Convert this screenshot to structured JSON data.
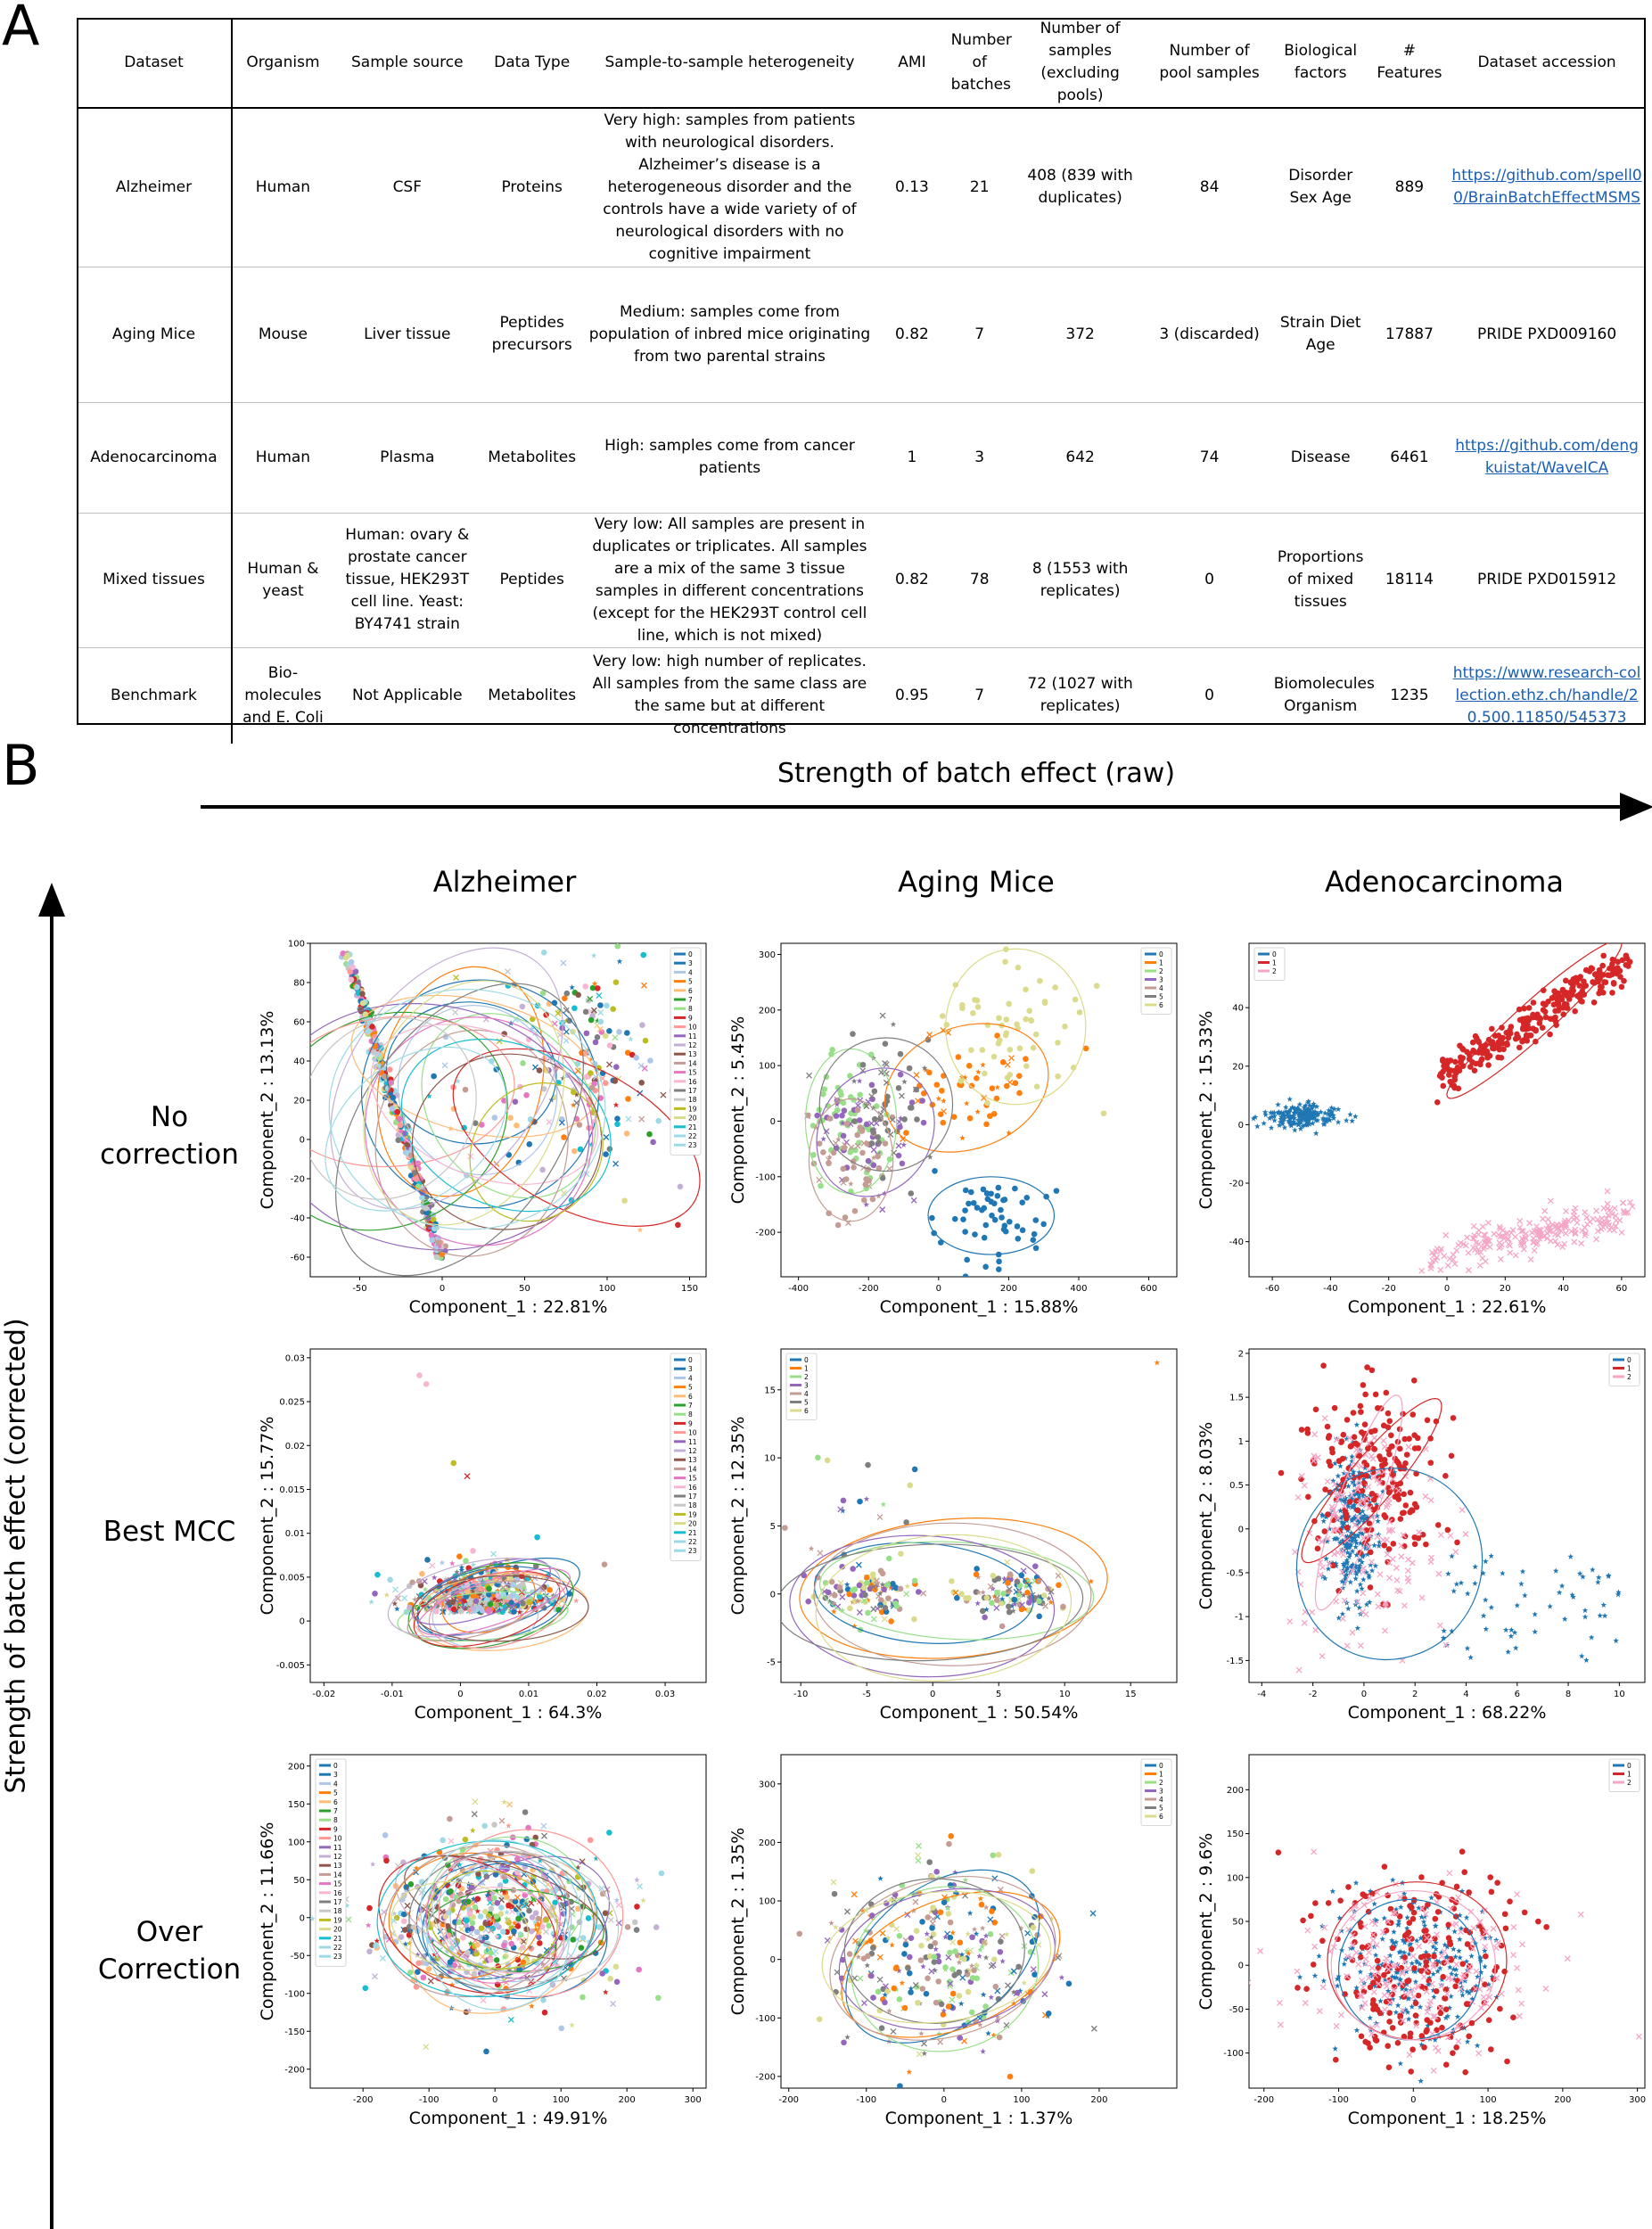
{
  "panel_a": {
    "letter": "A",
    "headers": [
      "Dataset",
      "Organism",
      "Sample source",
      "Data Type",
      "Sample-to-sample heterogeneity",
      "AMI",
      "Number of batches",
      "Number of samples (excluding pools)",
      "Number of pool samples",
      "Biological factors",
      "# Features",
      "Dataset accession"
    ],
    "rows": [
      {
        "dataset": "Alzheimer",
        "organism": "Human",
        "source": "CSF",
        "dtype": "Proteins",
        "heterogeneity": "Very high: samples from patients with neurological disorders. Alzheimer’s disease is a heterogeneous disorder and the controls have a wide variety of of neurological disorders with no cognitive impairment",
        "ami": "0.13",
        "batches": "21",
        "samples": "408 (839 with duplicates)",
        "pools": "84",
        "factors": "Disorder Sex Age",
        "features": "889",
        "accession": "https://github.com/spell00/BrainBatchEffectMSMS",
        "accession_is_link": true
      },
      {
        "dataset": "Aging Mice",
        "organism": "Mouse",
        "source": "Liver tissue",
        "dtype": "Peptides precursors",
        "heterogeneity": "Medium: samples come from population of inbred mice originating from two parental strains",
        "ami": "0.82",
        "batches": "7",
        "samples": "372",
        "pools": "3  (discarded)",
        "factors": "Strain Diet Age",
        "features": "17887",
        "accession": "PRIDE PXD009160",
        "accession_is_link": false
      },
      {
        "dataset": "Adenocarcinoma",
        "organism": "Human",
        "source": "Plasma",
        "dtype": "Metabolites",
        "heterogeneity": "High: samples come from cancer patients",
        "ami": "1",
        "batches": "3",
        "samples": "642",
        "pools": "74",
        "factors": "Disease",
        "features": "6461",
        "accession": "https://github.com/dengkuistat/WaveICA",
        "accession_is_link": true
      },
      {
        "dataset": "Mixed tissues",
        "organism": "Human & yeast",
        "source": "Human: ovary & prostate cancer tissue, HEK293T cell line. Yeast: BY4741 strain",
        "dtype": "Peptides",
        "heterogeneity": "Very low: All samples are present in duplicates or triplicates. All samples are a mix of the same 3 tissue samples in different concentrations (except for the HEK293T control cell line, which is not mixed)",
        "ami": "0.82",
        "batches": "78",
        "samples": "8 (1553 with replicates)",
        "pools": "0",
        "factors": "Proportions of mixed tissues",
        "features": "18114",
        "accession": "PRIDE PXD015912",
        "accession_is_link": false
      },
      {
        "dataset": "Benchmark",
        "organism": "Bio-molecules and E. Coli",
        "source": "Not Applicable",
        "dtype": "Metabolites",
        "heterogeneity": "Very low: high number of replicates. All samples from the same class are the same but at different concentrations",
        "ami": "0.95",
        "batches": "7",
        "samples": "72 (1027 with replicates)",
        "pools": "0",
        "factors": "Biomolecules Organism",
        "features": "1235",
        "accession": "https://www.research-collection.ethz.ch/handle/20.500.11850/545373",
        "accession_is_link": true
      }
    ]
  },
  "panel_b": {
    "letter": "B",
    "x_arrow_label": "Strength of batch effect (raw)",
    "y_arrow_label": "Strength of batch effect (corrected)",
    "columns": [
      "Alzheimer",
      "Aging Mice",
      "Adenocarcinoma"
    ],
    "rows": [
      "No correction",
      "Best MCC",
      "Over Correction"
    ]
  },
  "colors": {
    "tab": [
      "#1f77b4",
      "#ff7f0e",
      "#2ca02c",
      "#d62728",
      "#9467bd",
      "#8c564b",
      "#e377c2",
      "#7f7f7f",
      "#bcbd22",
      "#17becf"
    ],
    "tab_light": [
      "#aec7e8",
      "#ffbb78",
      "#98df8a",
      "#ff9896",
      "#c5b0d5",
      "#c49c94",
      "#f7b6d2",
      "#c7c7c7",
      "#dbdb8d",
      "#9edae5"
    ],
    "adeno": [
      "#1f77b4",
      "#d62728",
      "#f4a6c6"
    ],
    "mice": [
      "#1f77b4",
      "#ff7f0e",
      "#98df8a",
      "#9467bd",
      "#c49c94",
      "#7f7f7f",
      "#dbdb8d"
    ]
  },
  "chart_data": [
    {
      "id": "alz-raw",
      "type": "scatter",
      "xlabel": "Component_1 : 22.81%",
      "ylabel": "Component_2 : 13.13%",
      "xlim": [
        -80,
        160
      ],
      "ylim": [
        -70,
        100
      ],
      "xticks": [
        -50,
        0,
        50,
        100,
        150
      ],
      "yticks": [
        -60,
        -40,
        -20,
        0,
        20,
        40,
        60,
        80,
        100
      ],
      "legend": [
        "0",
        "3",
        "4",
        "5",
        "6",
        "7",
        "8",
        "9",
        "10",
        "11",
        "12",
        "13",
        "14",
        "15",
        "16",
        "17",
        "18",
        "19",
        "20",
        "21",
        "22",
        "23"
      ],
      "legend_pos": "top-right"
    },
    {
      "id": "mice-raw",
      "type": "scatter",
      "xlabel": "Component_1 : 15.88%",
      "ylabel": "Component_2 : 5.45%",
      "xlim": [
        -450,
        680
      ],
      "ylim": [
        -280,
        320
      ],
      "xticks": [
        -400,
        -200,
        0,
        200,
        400,
        600
      ],
      "yticks": [
        -200,
        -100,
        0,
        100,
        200,
        300
      ],
      "legend": [
        "0",
        "1",
        "2",
        "3",
        "4",
        "5",
        "6"
      ],
      "legend_pos": "top-right"
    },
    {
      "id": "adeno-raw",
      "type": "scatter",
      "xlabel": "Component_1 : 22.61%",
      "ylabel": "Component_2 : 15.33%",
      "xlim": [
        -68,
        68
      ],
      "ylim": [
        -52,
        62
      ],
      "xticks": [
        -60,
        -40,
        -20,
        0,
        20,
        40,
        60
      ],
      "yticks": [
        -40,
        -20,
        0,
        20,
        40
      ],
      "legend": [
        "0",
        "1",
        "2"
      ],
      "legend_pos": "top-left"
    },
    {
      "id": "alz-best",
      "type": "scatter",
      "xlabel": "Component_1 : 64.3%",
      "ylabel": "Component_2 : 15.77%",
      "xlim": [
        -0.022,
        0.036
      ],
      "ylim": [
        -0.007,
        0.031
      ],
      "xticks": [
        -0.02,
        -0.01,
        0.0,
        0.01,
        0.02,
        0.03
      ],
      "yticks": [
        -0.005,
        0.0,
        0.005,
        0.01,
        0.015,
        0.02,
        0.025,
        0.03
      ],
      "legend": [
        "0",
        "3",
        "4",
        "5",
        "6",
        "7",
        "8",
        "9",
        "10",
        "11",
        "12",
        "13",
        "14",
        "15",
        "16",
        "17",
        "18",
        "19",
        "20",
        "21",
        "22",
        "23"
      ],
      "legend_pos": "top-right"
    },
    {
      "id": "mice-best",
      "type": "scatter",
      "xlabel": "Component_1 : 50.54%",
      "ylabel": "Component_2 : 12.35%",
      "xlim": [
        -11.5,
        18.5
      ],
      "ylim": [
        -6.5,
        18
      ],
      "xticks": [
        -10,
        -5,
        0,
        5,
        10,
        15
      ],
      "yticks": [
        -5,
        0,
        5,
        10,
        15
      ],
      "legend": [
        "0",
        "1",
        "2",
        "3",
        "4",
        "5",
        "6"
      ],
      "legend_pos": "top-left"
    },
    {
      "id": "adeno-best",
      "type": "scatter",
      "xlabel": "Component_1 : 68.22%",
      "ylabel": "Component_2 : 8.03%",
      "xlim": [
        -4.5,
        11
      ],
      "ylim": [
        -1.75,
        2.05
      ],
      "xticks": [
        -4,
        -2,
        0,
        2,
        4,
        6,
        8,
        10
      ],
      "yticks": [
        -1.5,
        -1.0,
        -0.5,
        0.0,
        0.5,
        1.0,
        1.5,
        2.0
      ],
      "legend": [
        "0",
        "1",
        "2"
      ],
      "legend_pos": "top-right"
    },
    {
      "id": "alz-over",
      "type": "scatter",
      "xlabel": "Component_1 : 49.91%",
      "ylabel": "Component_2 : 11.66%",
      "xlim": [
        -280,
        320
      ],
      "ylim": [
        -225,
        215
      ],
      "xticks": [
        -200,
        -100,
        0,
        100,
        200,
        300
      ],
      "yticks": [
        -200,
        -150,
        -100,
        -50,
        0,
        50,
        100,
        150,
        200
      ],
      "legend": [
        "0",
        "3",
        "4",
        "5",
        "6",
        "7",
        "8",
        "9",
        "10",
        "11",
        "12",
        "13",
        "14",
        "15",
        "16",
        "17",
        "18",
        "19",
        "20",
        "21",
        "22",
        "23"
      ],
      "legend_pos": "top-left"
    },
    {
      "id": "mice-over",
      "type": "scatter",
      "xlabel": "Component_1 : 1.37%",
      "ylabel": "Component_2 : 1.35%",
      "xlim": [
        -210,
        300
      ],
      "ylim": [
        -220,
        350
      ],
      "xticks": [
        -200,
        -100,
        0,
        100,
        200
      ],
      "yticks": [
        -200,
        -100,
        0,
        100,
        200,
        300
      ],
      "legend": [
        "0",
        "1",
        "2",
        "3",
        "4",
        "5",
        "6"
      ],
      "legend_pos": "top-right"
    },
    {
      "id": "adeno-over",
      "type": "scatter",
      "xlabel": "Component_1 : 18.25%",
      "ylabel": "Component_2 : 9.6%",
      "xlim": [
        -220,
        310
      ],
      "ylim": [
        -140,
        240
      ],
      "xticks": [
        -200,
        -100,
        0,
        100,
        200,
        300
      ],
      "yticks": [
        -100,
        -50,
        0,
        50,
        100,
        150,
        200
      ],
      "legend": [
        "0",
        "1",
        "2"
      ],
      "legend_pos": "top-right"
    }
  ]
}
